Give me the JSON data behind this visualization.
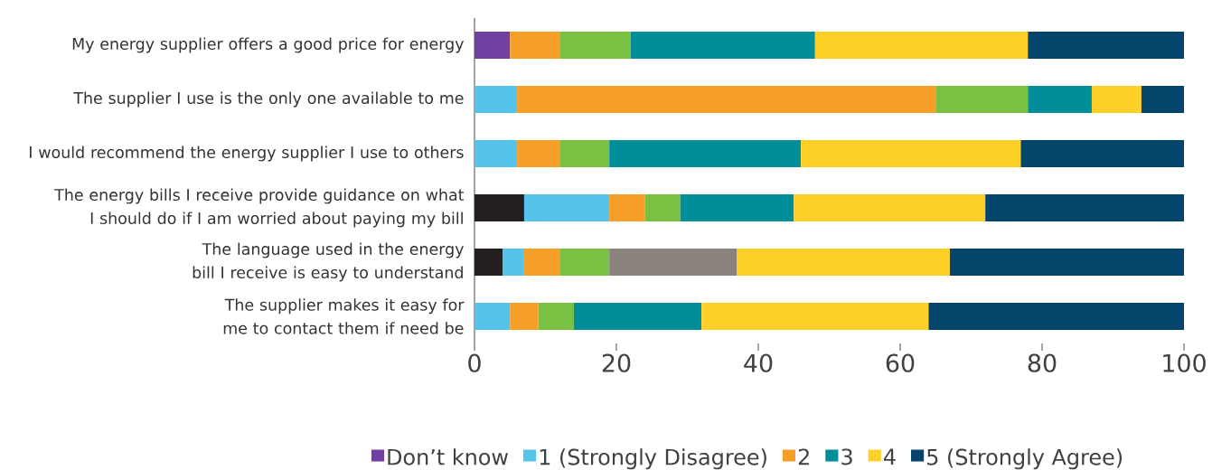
{
  "chart_data": {
    "type": "bar",
    "orientation": "horizontal",
    "stacked": true,
    "categories": [
      "My energy supplier offers a good price for energy",
      "The supplier I use is the only one available to me",
      "I would recommend the energy supplier I use to others",
      "The energy bills I receive provide guidance on what I should do if I am worried about paying my bill",
      "The language used in the energy bill I receive is easy to understand",
      "The supplier makes it easy for me to contact them if need be"
    ],
    "series": [
      {
        "name": "Don’t know",
        "color": "#7040a0",
        "values": [
          5,
          null,
          null,
          null,
          null,
          null
        ]
      },
      {
        "color": "#231f20",
        "values": [
          null,
          null,
          null,
          7,
          4,
          null
        ]
      },
      {
        "name": "1 (Strongly Disagree)",
        "color": "#56c3ea",
        "values": [
          null,
          6,
          6,
          12,
          3,
          5
        ]
      },
      {
        "name": "2",
        "color": "#f59e28",
        "values": [
          7,
          59,
          6,
          5,
          5,
          4
        ]
      },
      {
        "color": "#7ac143",
        "values": [
          10,
          13,
          7,
          5,
          7,
          5
        ]
      },
      {
        "color": "#8b847e",
        "values": [
          null,
          null,
          null,
          null,
          18,
          null
        ]
      },
      {
        "name": "3",
        "color": "#008e9b",
        "values": [
          26,
          9,
          27,
          16,
          null,
          18
        ]
      },
      {
        "name": "4",
        "color": "#ffd128",
        "values": [
          30,
          7,
          31,
          27,
          30,
          32
        ]
      },
      {
        "name": "5 (Strongly Agree)",
        "color": "#05456b",
        "values": [
          22,
          6,
          23,
          28,
          33,
          36
        ]
      }
    ],
    "xlim": [
      0,
      100
    ],
    "xticks": [
      0,
      20,
      40,
      60,
      80,
      100
    ],
    "legend": "bottom"
  }
}
